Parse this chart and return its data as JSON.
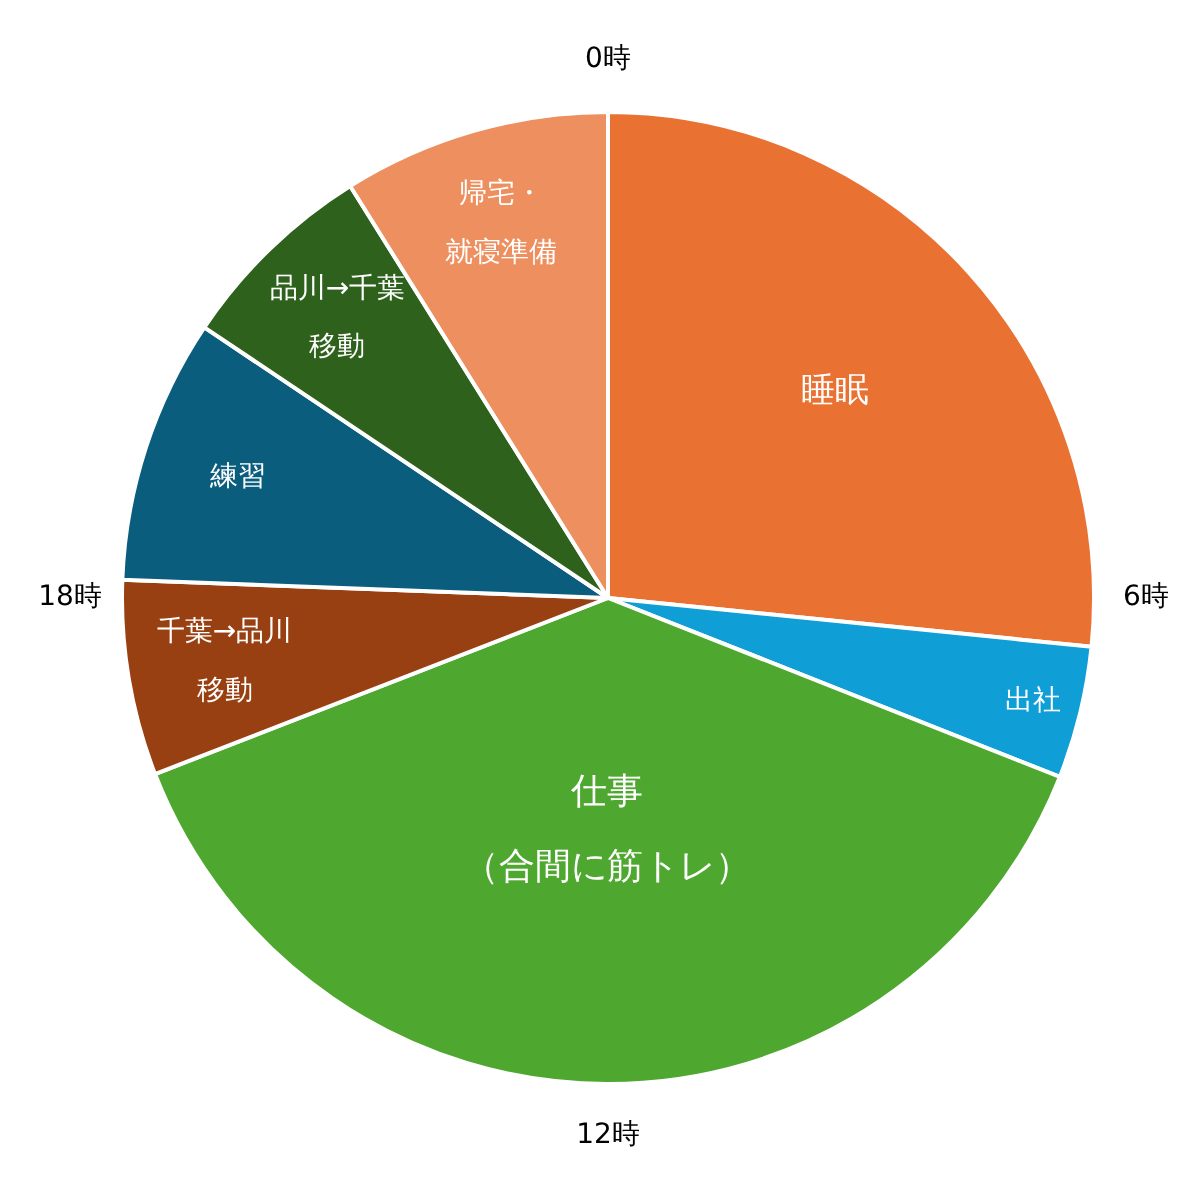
{
  "chart_data": {
    "type": "pie",
    "categories": [
      "睡眠",
      "出社",
      "仕事（合間に筋トレ）",
      "千葉→品川移動",
      "練習",
      "品川→千葉移動",
      "帰宅・就寝準備"
    ],
    "values": [
      26.6,
      4.4,
      38.1,
      6.5,
      8.8,
      6.7,
      8.9
    ],
    "colors": [
      "#e97132",
      "#0f9ed5",
      "#4ea72e",
      "#994012",
      "#0b5d7e",
      "#2e611c",
      "#ed8f5e"
    ],
    "annotations": [
      "0時",
      "6時",
      "12時",
      "18時"
    ]
  }
}
